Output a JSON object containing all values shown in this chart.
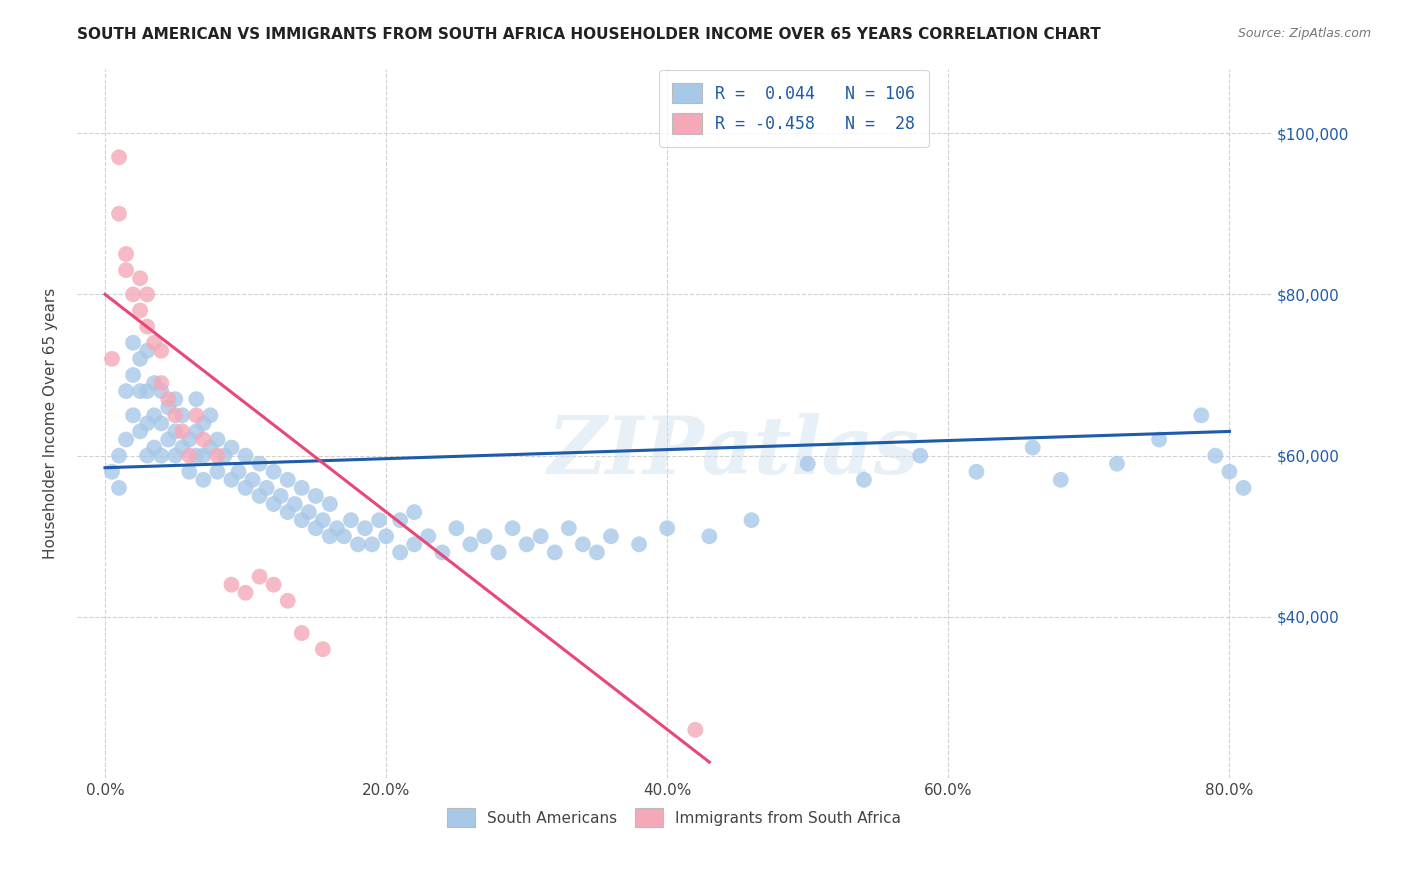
{
  "title": "SOUTH AMERICAN VS IMMIGRANTS FROM SOUTH AFRICA HOUSEHOLDER INCOME OVER 65 YEARS CORRELATION CHART",
  "source": "Source: ZipAtlas.com",
  "xlabel_ticks": [
    "0.0%",
    "20.0%",
    "40.0%",
    "60.0%",
    "80.0%"
  ],
  "xlabel_tick_vals": [
    0.0,
    0.2,
    0.4,
    0.6,
    0.8
  ],
  "ylabel": "Householder Income Over 65 years",
  "ylabel_ticks": [
    "$40,000",
    "$60,000",
    "$80,000",
    "$100,000"
  ],
  "ylabel_tick_vals": [
    40000,
    60000,
    80000,
    100000
  ],
  "xlim": [
    -0.02,
    0.83
  ],
  "ylim": [
    20000,
    108000
  ],
  "blue_R": 0.044,
  "blue_N": 106,
  "pink_R": -0.458,
  "pink_N": 28,
  "blue_color": "#A8C8E8",
  "pink_color": "#F4A8B8",
  "blue_line_color": "#1E5BA8",
  "pink_line_color": "#E84878",
  "watermark": "ZIPatlas",
  "blue_line_x0": 0.0,
  "blue_line_x1": 0.8,
  "blue_line_y0": 58500,
  "blue_line_y1": 63000,
  "pink_line_x0": 0.0,
  "pink_line_x1": 0.43,
  "pink_line_y0": 80000,
  "pink_line_y1": 22000,
  "blue_scatter_x": [
    0.005,
    0.01,
    0.01,
    0.015,
    0.015,
    0.02,
    0.02,
    0.02,
    0.025,
    0.025,
    0.025,
    0.03,
    0.03,
    0.03,
    0.03,
    0.035,
    0.035,
    0.035,
    0.04,
    0.04,
    0.04,
    0.045,
    0.045,
    0.05,
    0.05,
    0.05,
    0.055,
    0.055,
    0.06,
    0.06,
    0.065,
    0.065,
    0.065,
    0.07,
    0.07,
    0.07,
    0.075,
    0.075,
    0.08,
    0.08,
    0.085,
    0.09,
    0.09,
    0.095,
    0.1,
    0.1,
    0.105,
    0.11,
    0.11,
    0.115,
    0.12,
    0.12,
    0.125,
    0.13,
    0.13,
    0.135,
    0.14,
    0.14,
    0.145,
    0.15,
    0.15,
    0.155,
    0.16,
    0.16,
    0.165,
    0.17,
    0.175,
    0.18,
    0.185,
    0.19,
    0.195,
    0.2,
    0.21,
    0.21,
    0.22,
    0.22,
    0.23,
    0.24,
    0.25,
    0.26,
    0.27,
    0.28,
    0.29,
    0.3,
    0.31,
    0.32,
    0.33,
    0.34,
    0.35,
    0.36,
    0.38,
    0.4,
    0.43,
    0.46,
    0.5,
    0.54,
    0.58,
    0.62,
    0.66,
    0.68,
    0.72,
    0.75,
    0.78,
    0.79,
    0.8,
    0.81
  ],
  "blue_scatter_y": [
    58000,
    56000,
    60000,
    62000,
    68000,
    65000,
    70000,
    74000,
    63000,
    68000,
    72000,
    60000,
    64000,
    68000,
    73000,
    61000,
    65000,
    69000,
    60000,
    64000,
    68000,
    62000,
    66000,
    60000,
    63000,
    67000,
    61000,
    65000,
    58000,
    62000,
    60000,
    63000,
    67000,
    57000,
    60000,
    64000,
    61000,
    65000,
    58000,
    62000,
    60000,
    57000,
    61000,
    58000,
    56000,
    60000,
    57000,
    55000,
    59000,
    56000,
    54000,
    58000,
    55000,
    53000,
    57000,
    54000,
    52000,
    56000,
    53000,
    51000,
    55000,
    52000,
    50000,
    54000,
    51000,
    50000,
    52000,
    49000,
    51000,
    49000,
    52000,
    50000,
    48000,
    52000,
    49000,
    53000,
    50000,
    48000,
    51000,
    49000,
    50000,
    48000,
    51000,
    49000,
    50000,
    48000,
    51000,
    49000,
    48000,
    50000,
    49000,
    51000,
    50000,
    52000,
    59000,
    57000,
    60000,
    58000,
    61000,
    57000,
    59000,
    62000,
    65000,
    60000,
    58000,
    56000
  ],
  "pink_scatter_x": [
    0.005,
    0.01,
    0.01,
    0.015,
    0.015,
    0.02,
    0.025,
    0.025,
    0.03,
    0.03,
    0.035,
    0.04,
    0.04,
    0.045,
    0.05,
    0.055,
    0.06,
    0.065,
    0.07,
    0.08,
    0.09,
    0.1,
    0.11,
    0.12,
    0.13,
    0.14,
    0.155,
    0.42
  ],
  "pink_scatter_y": [
    72000,
    97000,
    90000,
    85000,
    83000,
    80000,
    78000,
    82000,
    76000,
    80000,
    74000,
    69000,
    73000,
    67000,
    65000,
    63000,
    60000,
    65000,
    62000,
    60000,
    44000,
    43000,
    45000,
    44000,
    42000,
    38000,
    36000,
    26000
  ]
}
